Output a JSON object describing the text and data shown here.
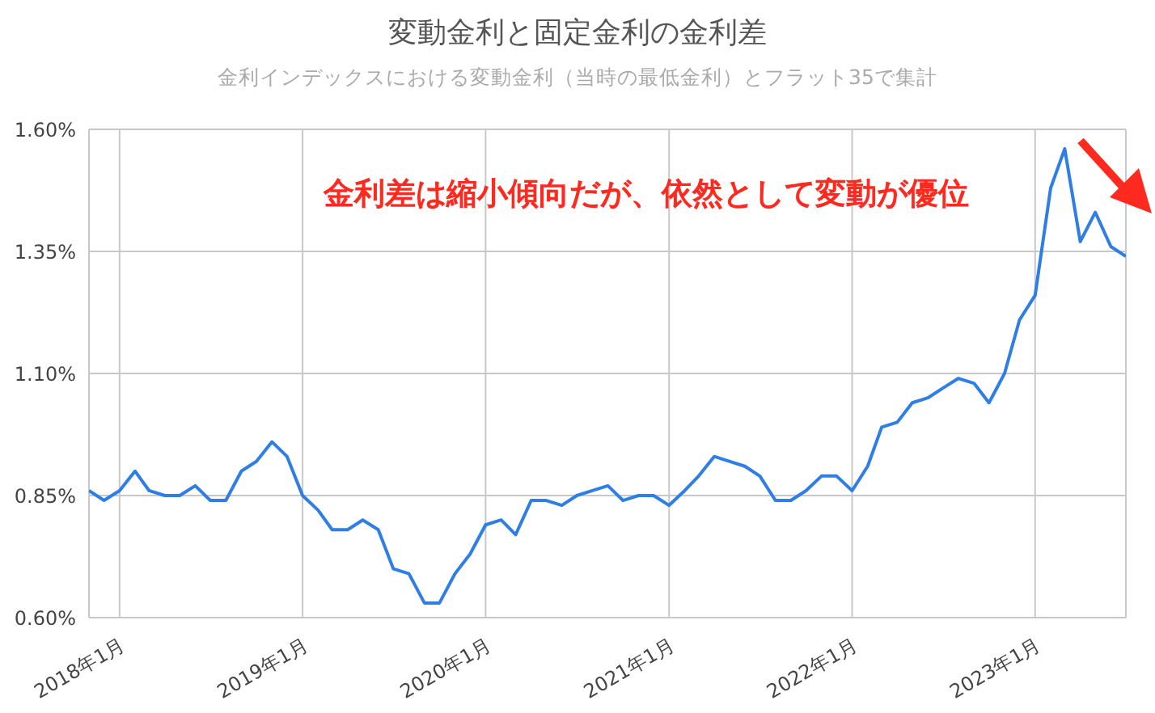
{
  "chart_data": {
    "type": "line",
    "title": "変動金利と固定金利の金利差",
    "subtitle": "金利インデックスにおける変動金利（当時の最低金利）とフラット35で集計",
    "annotations": [
      "金利差は縮小傾向だが、依然として変動が優位"
    ],
    "x": [
      "2017-11",
      "2017-12",
      "2018-01",
      "2018-02",
      "2018-03",
      "2018-04",
      "2018-05",
      "2018-06",
      "2018-07",
      "2018-08",
      "2018-09",
      "2018-10",
      "2018-11",
      "2018-12",
      "2019-01",
      "2019-02",
      "2019-03",
      "2019-04",
      "2019-05",
      "2019-06",
      "2019-07",
      "2019-08",
      "2019-09",
      "2019-10",
      "2019-11",
      "2019-12",
      "2020-01",
      "2020-02",
      "2020-03",
      "2020-04",
      "2020-05",
      "2020-06",
      "2020-07",
      "2020-08",
      "2020-09",
      "2020-10",
      "2020-11",
      "2020-12",
      "2021-01",
      "2021-02",
      "2021-03",
      "2021-04",
      "2021-05",
      "2021-06",
      "2021-07",
      "2021-08",
      "2021-09",
      "2021-10",
      "2021-11",
      "2021-12",
      "2022-01",
      "2022-02",
      "2022-03",
      "2022-04",
      "2022-05",
      "2022-06",
      "2022-07",
      "2022-08",
      "2022-09",
      "2022-10",
      "2022-11",
      "2022-12",
      "2023-01",
      "2023-02",
      "2023-03",
      "2023-04",
      "2023-05",
      "2023-06",
      "2023-07"
    ],
    "values": [
      0.86,
      0.84,
      0.86,
      0.9,
      0.86,
      0.85,
      0.85,
      0.87,
      0.84,
      0.84,
      0.9,
      0.92,
      0.96,
      0.93,
      0.85,
      0.82,
      0.78,
      0.78,
      0.8,
      0.78,
      0.7,
      0.69,
      0.63,
      0.63,
      0.69,
      0.73,
      0.79,
      0.8,
      0.77,
      0.84,
      0.84,
      0.83,
      0.85,
      0.86,
      0.87,
      0.84,
      0.85,
      0.85,
      0.83,
      0.86,
      0.89,
      0.93,
      0.92,
      0.91,
      0.89,
      0.84,
      0.84,
      0.86,
      0.89,
      0.89,
      0.86,
      0.91,
      0.99,
      1.0,
      1.04,
      1.05,
      1.07,
      1.09,
      1.08,
      1.04,
      1.1,
      1.21,
      1.26,
      1.48,
      1.56,
      1.37,
      1.43,
      1.36,
      1.34
    ],
    "color": "#2f7ee6",
    "marker": "none",
    "line_style": "solid",
    "grid": true,
    "xlim": [
      "2017-11",
      "2023-07"
    ],
    "xticks": [
      {
        "value": "2018-01",
        "label": "2018年1月"
      },
      {
        "value": "2019-01",
        "label": "2019年1月"
      },
      {
        "value": "2020-01",
        "label": "2020年1月"
      },
      {
        "value": "2021-01",
        "label": "2021年1月"
      },
      {
        "value": "2022-01",
        "label": "2022年1月"
      },
      {
        "value": "2023-01",
        "label": "2023年1月"
      }
    ],
    "ylim": [
      0.6,
      1.6
    ],
    "yticks": [
      {
        "value": 0.6,
        "label": "0.60%"
      },
      {
        "value": 0.85,
        "label": "0.85%"
      },
      {
        "value": 1.1,
        "label": "1.10%"
      },
      {
        "value": 1.35,
        "label": "1.35%"
      },
      {
        "value": 1.6,
        "label": "1.60%"
      }
    ]
  }
}
